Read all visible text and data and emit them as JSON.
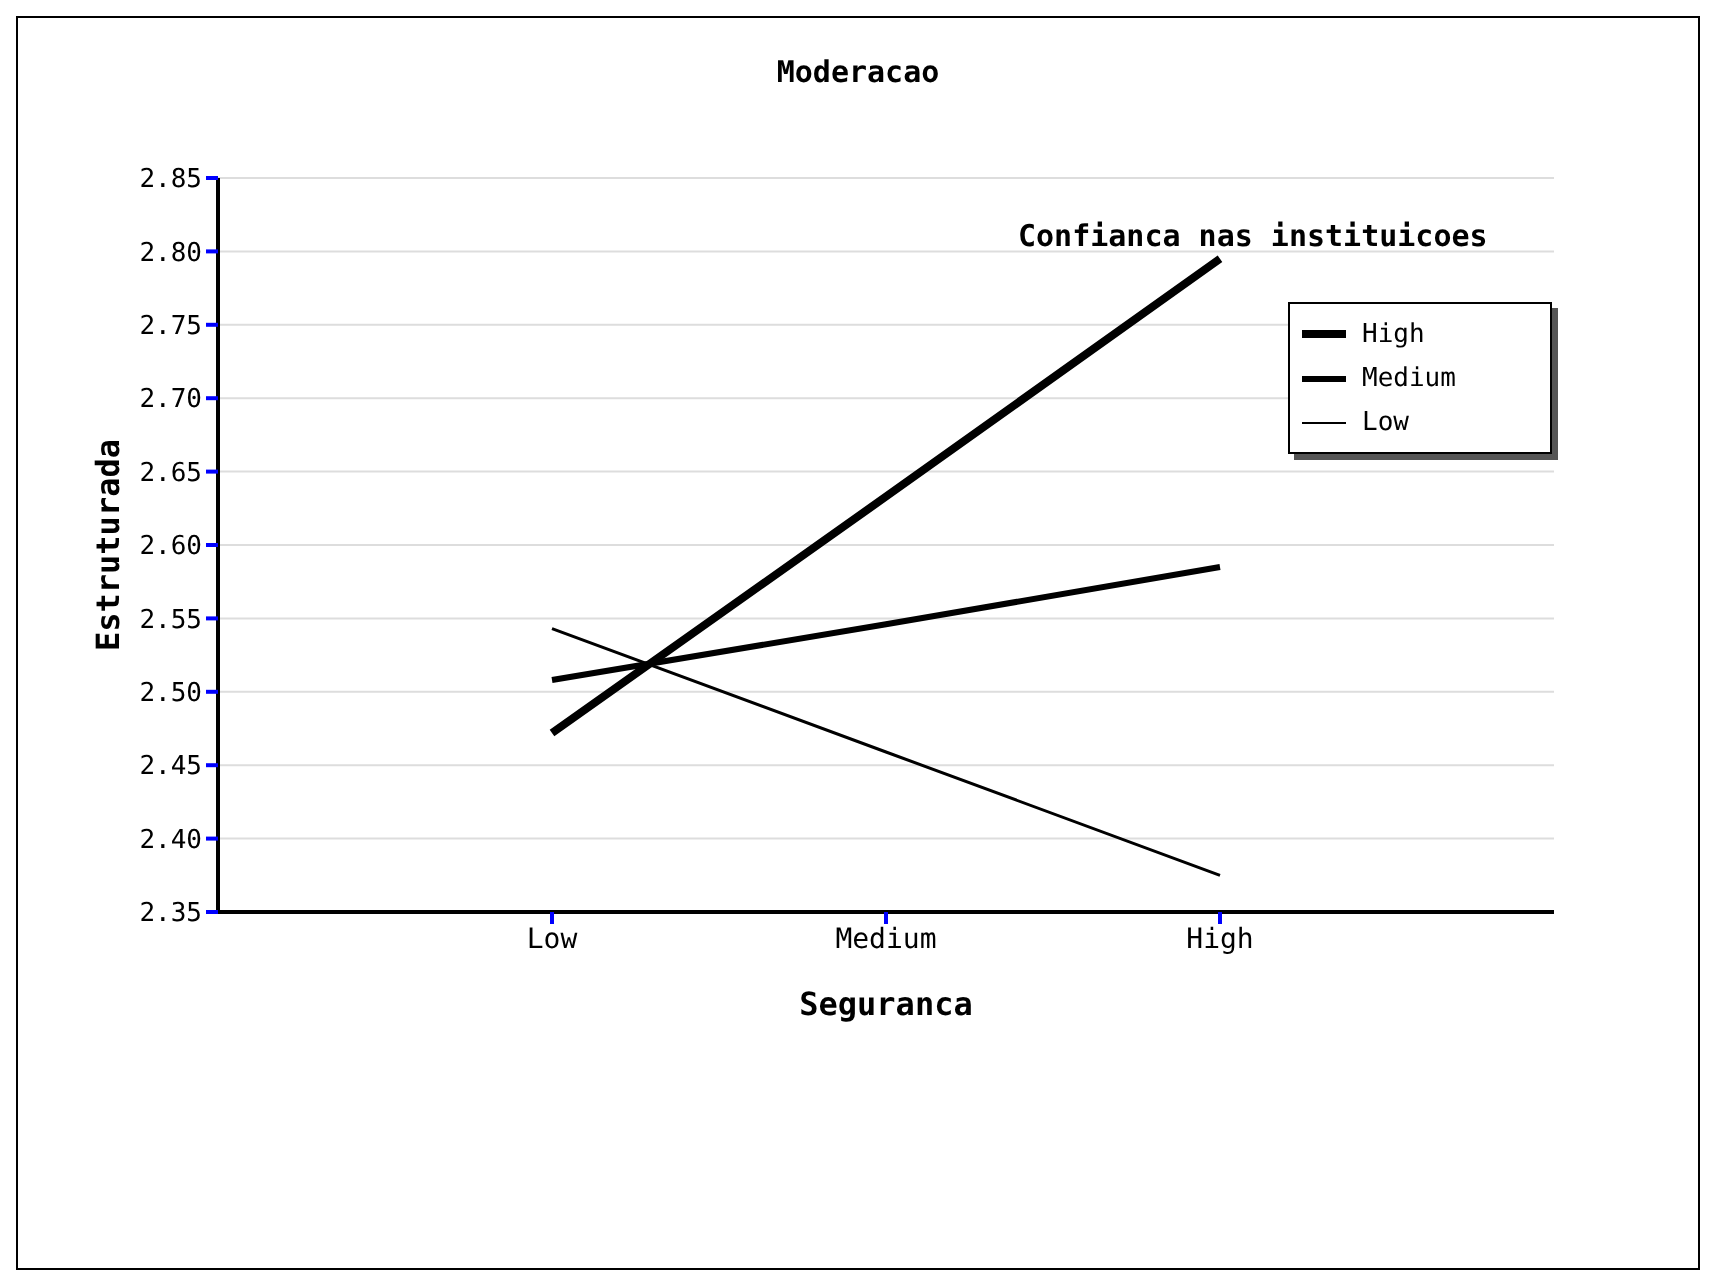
{
  "chart_data": {
    "type": "line",
    "title": "Moderacao",
    "xlabel": "Seguranca",
    "ylabel": "Estruturada",
    "legend_title": "Confianca nas instituicoes",
    "categories": [
      "Low",
      "Medium",
      "High"
    ],
    "series": [
      {
        "name": "High",
        "color": "#000000",
        "values": [
          2.472,
          2.633,
          2.795
        ]
      },
      {
        "name": "Medium",
        "color": "#000000",
        "values": [
          2.508,
          2.546,
          2.585
        ]
      },
      {
        "name": "Low",
        "color": "#000000",
        "values": [
          2.543,
          2.459,
          2.375
        ]
      }
    ],
    "ylim": [
      2.35,
      2.85
    ],
    "yticks": [
      2.35,
      {
        "value": 2.4,
        "label": "2.40"
      },
      2.45,
      {
        "value": 2.5,
        "label": "2.50"
      },
      2.55,
      {
        "value": 2.6,
        "label": "2.60"
      },
      2.65,
      {
        "value": 2.7,
        "label": "2.70"
      },
      2.75,
      {
        "value": 2.8,
        "label": "2.80"
      },
      2.85
    ],
    "grid": "y",
    "legend": "top right",
    "marker": "none",
    "line_style": "solid"
  }
}
